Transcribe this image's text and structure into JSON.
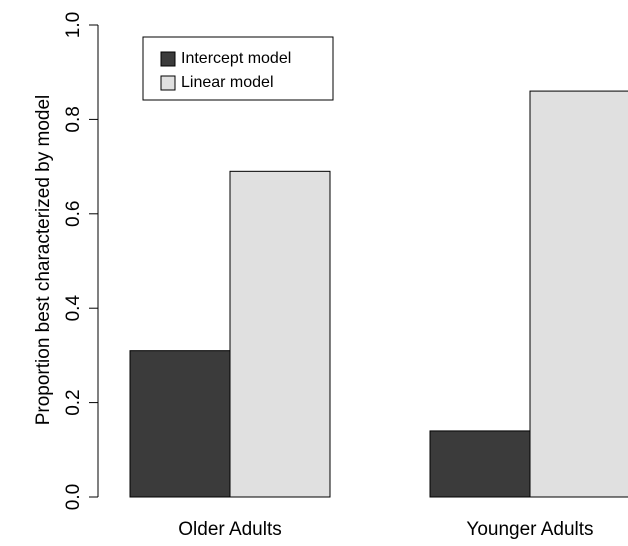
{
  "chart_data": {
    "type": "bar",
    "ylabel": "Proportion best characterized by model",
    "categories": [
      "Older Adults",
      "Younger Adults"
    ],
    "series": [
      {
        "name": "Intercept model",
        "color": "#3b3b3b",
        "values": [
          0.31,
          0.14
        ]
      },
      {
        "name": "Linear model",
        "color": "#e0e0e0",
        "values": [
          0.69,
          0.86
        ]
      }
    ],
    "ylim": [
      0,
      1
    ],
    "yticks": [
      {
        "value": 0,
        "label": "0.0"
      },
      0.2,
      0.4,
      0.6,
      0.8,
      {
        "value": 1,
        "label": "1.0"
      }
    ],
    "legend": "top-left"
  }
}
